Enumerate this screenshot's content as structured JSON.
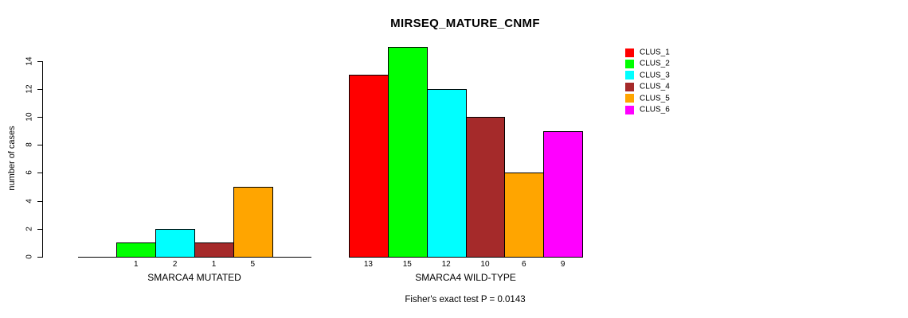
{
  "chart_data": {
    "type": "bar",
    "title": "MIRSEQ_MATURE_CNMF",
    "ylabel": "number of cases",
    "xlabel": "",
    "ylim": [
      0,
      15
    ],
    "yticks": [
      0,
      2,
      4,
      6,
      8,
      10,
      12,
      14
    ],
    "grid": false,
    "legend_position": "right",
    "legend": [
      {
        "label": "CLUS_1",
        "color": "#ff0000"
      },
      {
        "label": "CLUS_2",
        "color": "#00ff00"
      },
      {
        "label": "CLUS_3",
        "color": "#00ffff"
      },
      {
        "label": "CLUS_4",
        "color": "#a52a2a"
      },
      {
        "label": "CLUS_5",
        "color": "#ffa500"
      },
      {
        "label": "CLUS_6",
        "color": "#ff00ff"
      }
    ],
    "groups": [
      {
        "label": "SMARCA4 MUTATED",
        "categories": [
          "CLUS_1",
          "CLUS_2",
          "CLUS_3",
          "CLUS_4",
          "CLUS_5",
          "CLUS_6"
        ],
        "values": [
          0,
          1,
          2,
          1,
          5,
          0
        ],
        "value_labels": [
          "",
          "1",
          "2",
          "1",
          "5",
          ""
        ]
      },
      {
        "label": "SMARCA4 WILD-TYPE",
        "categories": [
          "CLUS_1",
          "CLUS_2",
          "CLUS_3",
          "CLUS_4",
          "CLUS_5",
          "CLUS_6"
        ],
        "values": [
          13,
          15,
          12,
          10,
          6,
          9
        ],
        "value_labels": [
          "13",
          "15",
          "12",
          "10",
          "6",
          "9"
        ]
      }
    ],
    "footnote": "Fisher's exact test P = 0.0143"
  }
}
